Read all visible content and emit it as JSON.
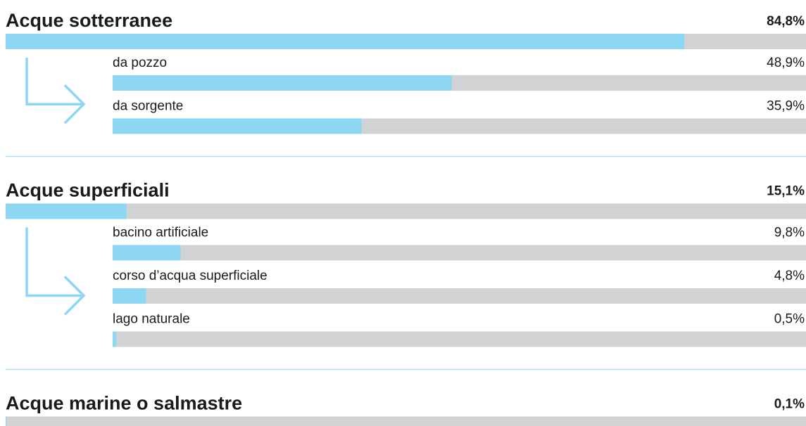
{
  "chart_data": {
    "type": "bar",
    "xlim": [
      0,
      100
    ],
    "color": "#8dd7f5",
    "track_color": "#d1d2d4",
    "groups": [
      {
        "name": "Acque sotterranee",
        "value": 84.8,
        "value_label": "84,8%",
        "items": [
          {
            "name": "da pozzo",
            "value": 48.9,
            "value_label": "48,9%"
          },
          {
            "name": "da sorgente",
            "value": 35.9,
            "value_label": "35,9%"
          }
        ]
      },
      {
        "name": "Acque superficiali",
        "value": 15.1,
        "value_label": "15,1%",
        "items": [
          {
            "name": "bacino artificiale",
            "value": 9.8,
            "value_label": "9,8%"
          },
          {
            "name": "corso d’acqua superficiale",
            "value": 4.8,
            "value_label": "4,8%"
          },
          {
            "name": "lago naturale",
            "value": 0.5,
            "value_label": "0,5%"
          }
        ]
      },
      {
        "name": "Acque marine o salmastre",
        "value": 0.1,
        "value_label": "0,1%",
        "items": []
      }
    ]
  }
}
